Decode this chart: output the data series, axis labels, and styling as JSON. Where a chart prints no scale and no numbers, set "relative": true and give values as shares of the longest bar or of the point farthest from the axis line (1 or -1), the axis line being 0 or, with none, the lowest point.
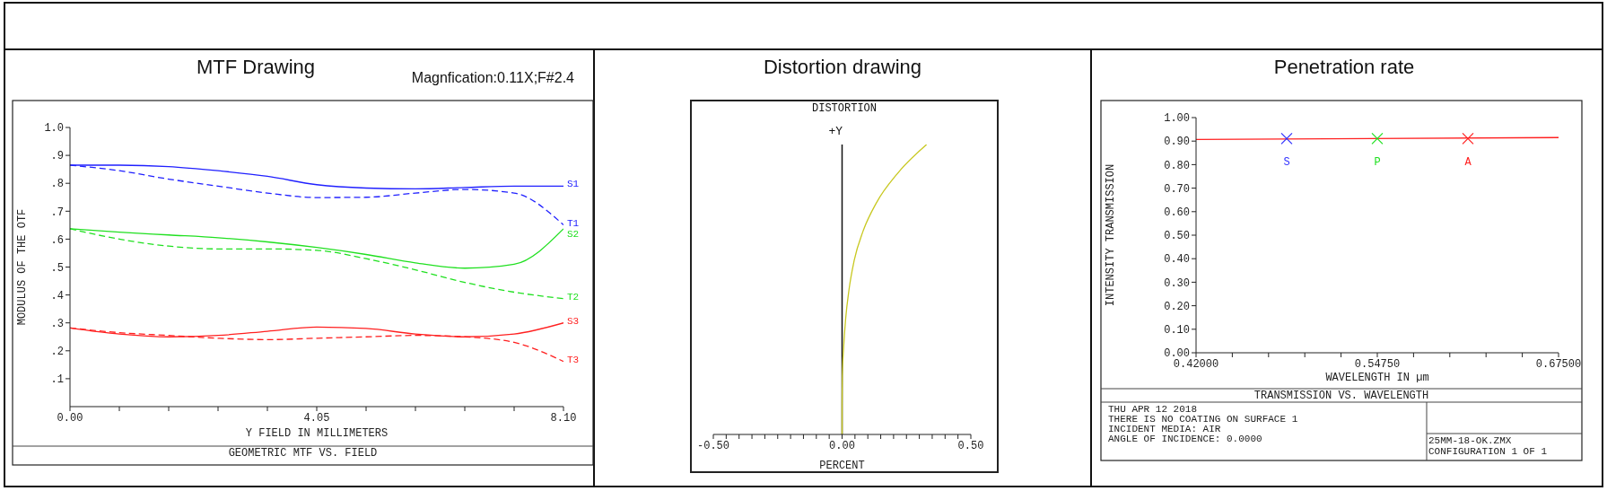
{
  "chart_data": [
    {
      "type": "line",
      "title": "MTF Drawing",
      "subtitle": "Magnfication:0.11X;F#2.4",
      "xlabel": "Y FIELD IN MILLIMETERS",
      "ylabel": "MODULUS OF THE OTF",
      "annotations": [
        "GEOMETRIC MTF VS. FIELD"
      ],
      "xlim": [
        0,
        8.1
      ],
      "xticks": [
        {
          "value": 0,
          "label": "0.00"
        },
        {
          "value": 0.81,
          "label": null
        },
        {
          "value": 1.62,
          "label": null
        },
        {
          "value": 2.43,
          "label": null
        },
        {
          "value": 3.24,
          "label": null
        },
        {
          "value": 4.05,
          "label": "4.05"
        },
        {
          "value": 4.86,
          "label": null
        },
        {
          "value": 5.67,
          "label": null
        },
        {
          "value": 6.48,
          "label": null
        },
        {
          "value": 7.29,
          "label": null
        },
        {
          "value": 8.1,
          "label": "8.10"
        }
      ],
      "ylim": [
        0,
        1
      ],
      "yticks": [
        {
          "value": 0.1,
          "label": ".1"
        },
        {
          "value": 0.2,
          "label": ".2"
        },
        {
          "value": 0.3,
          "label": ".3"
        },
        {
          "value": 0.4,
          "label": ".4"
        },
        {
          "value": 0.5,
          "label": ".5"
        },
        {
          "value": 0.6,
          "label": ".6"
        },
        {
          "value": 0.7,
          "label": ".7"
        },
        {
          "value": 0.8,
          "label": ".8"
        },
        {
          "value": 0.9,
          "label": ".9"
        },
        {
          "value": 1,
          "label": "1.0"
        }
      ],
      "x": [
        0,
        0.81,
        1.62,
        2.43,
        3.24,
        4.05,
        4.86,
        5.67,
        6.48,
        7.29,
        8.1
      ],
      "series": [
        {
          "name": "S1",
          "color": "#2020ff",
          "line_style": "solid",
          "values": [
            0.865,
            0.865,
            0.86,
            0.845,
            0.825,
            0.795,
            0.783,
            0.78,
            0.785,
            0.79,
            0.79
          ]
        },
        {
          "name": "T1",
          "color": "#2020ff",
          "line_style": "dashed",
          "values": [
            0.865,
            0.845,
            0.815,
            0.79,
            0.765,
            0.749,
            0.75,
            0.765,
            0.778,
            0.765,
            0.651
          ]
        },
        {
          "name": "S2",
          "color": "#20e020",
          "line_style": "solid",
          "values": [
            0.637,
            0.625,
            0.615,
            0.605,
            0.59,
            0.57,
            0.545,
            0.515,
            0.496,
            0.51,
            0.637
          ]
        },
        {
          "name": "T2",
          "color": "#20e020",
          "line_style": "dashed",
          "values": [
            0.637,
            0.6,
            0.575,
            0.565,
            0.565,
            0.56,
            0.53,
            0.49,
            0.445,
            0.41,
            0.387
          ]
        },
        {
          "name": "S3",
          "color": "#ff2020",
          "line_style": "solid",
          "values": [
            0.282,
            0.26,
            0.25,
            0.255,
            0.27,
            0.285,
            0.28,
            0.26,
            0.25,
            0.26,
            0.3
          ]
        },
        {
          "name": "T3",
          "color": "#ff2020",
          "line_style": "dashed",
          "values": [
            0.282,
            0.265,
            0.255,
            0.245,
            0.24,
            0.245,
            0.25,
            0.255,
            0.25,
            0.23,
            0.162
          ]
        }
      ]
    },
    {
      "type": "line",
      "title": "Distortion drawing",
      "subtitle": "DISTORTION",
      "xlabel": "PERCENT",
      "ylabel": "+Y",
      "relative": true,
      "xlim": [
        -0.5,
        0.5
      ],
      "xticks": [
        {
          "value": -0.5,
          "label": "-0.50"
        },
        {
          "value": -0.45,
          "label": null
        },
        {
          "value": -0.4,
          "label": null
        },
        {
          "value": -0.35,
          "label": null
        },
        {
          "value": -0.3,
          "label": null
        },
        {
          "value": -0.25,
          "label": null
        },
        {
          "value": -0.2,
          "label": null
        },
        {
          "value": -0.15,
          "label": null
        },
        {
          "value": -0.1,
          "label": null
        },
        {
          "value": -0.05,
          "label": null
        },
        {
          "value": 0,
          "label": "0.00"
        },
        {
          "value": 0.05,
          "label": null
        },
        {
          "value": 0.1,
          "label": null
        },
        {
          "value": 0.15,
          "label": null
        },
        {
          "value": 0.2,
          "label": null
        },
        {
          "value": 0.25,
          "label": null
        },
        {
          "value": 0.3,
          "label": null
        },
        {
          "value": 0.35,
          "label": null
        },
        {
          "value": 0.4,
          "label": null
        },
        {
          "value": 0.45,
          "label": null
        },
        {
          "value": 0.5,
          "label": "0.50"
        }
      ],
      "series": [
        {
          "color": "#c8c820",
          "x": [
            0,
            0,
            0.001,
            0.006,
            0.014,
            0.027,
            0.047,
            0.081,
            0.134,
            0.215,
            0.328
          ],
          "values": [
            0,
            0.1,
            0.2,
            0.3,
            0.4,
            0.5,
            0.6,
            0.7,
            0.8,
            0.9,
            1
          ]
        }
      ]
    },
    {
      "type": "line",
      "title": "Penetration rate",
      "xlabel": "WAVELENGTH IN µm",
      "ylabel": "INTENSITY TRANSMISSION",
      "annotations": [
        "TRANSMISSION VS. WAVELENGTH",
        "THU APR 12 2018",
        "THERE IS NO COATING ON SURFACE 1",
        "INCIDENT MEDIA: AIR",
        "ANGLE OF INCIDENCE: 0.0000",
        "25MM-18-OK.ZMX",
        "CONFIGURATION 1 OF 1"
      ],
      "xlim": [
        0.42,
        0.675
      ],
      "xticks": [
        {
          "value": 0.42,
          "label": "0.42000"
        },
        {
          "value": 0.4455,
          "label": null
        },
        {
          "value": 0.471,
          "label": null
        },
        {
          "value": 0.4965,
          "label": null
        },
        {
          "value": 0.522,
          "label": null
        },
        {
          "value": 0.5475,
          "label": "0.54750"
        },
        {
          "value": 0.573,
          "label": null
        },
        {
          "value": 0.5985,
          "label": null
        },
        {
          "value": 0.624,
          "label": null
        },
        {
          "value": 0.6495,
          "label": null
        },
        {
          "value": 0.675,
          "label": "0.67500"
        }
      ],
      "ylim": [
        0,
        1
      ],
      "yticks": [
        {
          "value": 0,
          "label": "0.00"
        },
        {
          "value": 0.1,
          "label": "0.10"
        },
        {
          "value": 0.2,
          "label": "0.20"
        },
        {
          "value": 0.3,
          "label": "0.30"
        },
        {
          "value": 0.4,
          "label": "0.40"
        },
        {
          "value": 0.5,
          "label": "0.50"
        },
        {
          "value": 0.6,
          "label": "0.60"
        },
        {
          "value": 0.7,
          "label": "0.70"
        },
        {
          "value": 0.8,
          "label": "0.80"
        },
        {
          "value": 0.9,
          "label": "0.90"
        },
        {
          "value": 1,
          "label": "1.00"
        }
      ],
      "series": [
        {
          "color": "#ff2020",
          "x": [
            0.42,
            0.675
          ],
          "values": [
            0.907,
            0.915
          ]
        },
        {
          "type": "scatter",
          "name": "S",
          "color": "#3030ff",
          "marker": "cross",
          "x": [
            0.48375
          ],
          "values": [
            0.911
          ]
        },
        {
          "type": "scatter",
          "name": "P",
          "color": "#20e020",
          "marker": "cross",
          "x": [
            0.5475
          ],
          "values": [
            0.911
          ]
        },
        {
          "type": "scatter",
          "name": "A",
          "color": "#ff2020",
          "marker": "cross",
          "x": [
            0.61125
          ],
          "values": [
            0.911
          ]
        }
      ]
    }
  ]
}
